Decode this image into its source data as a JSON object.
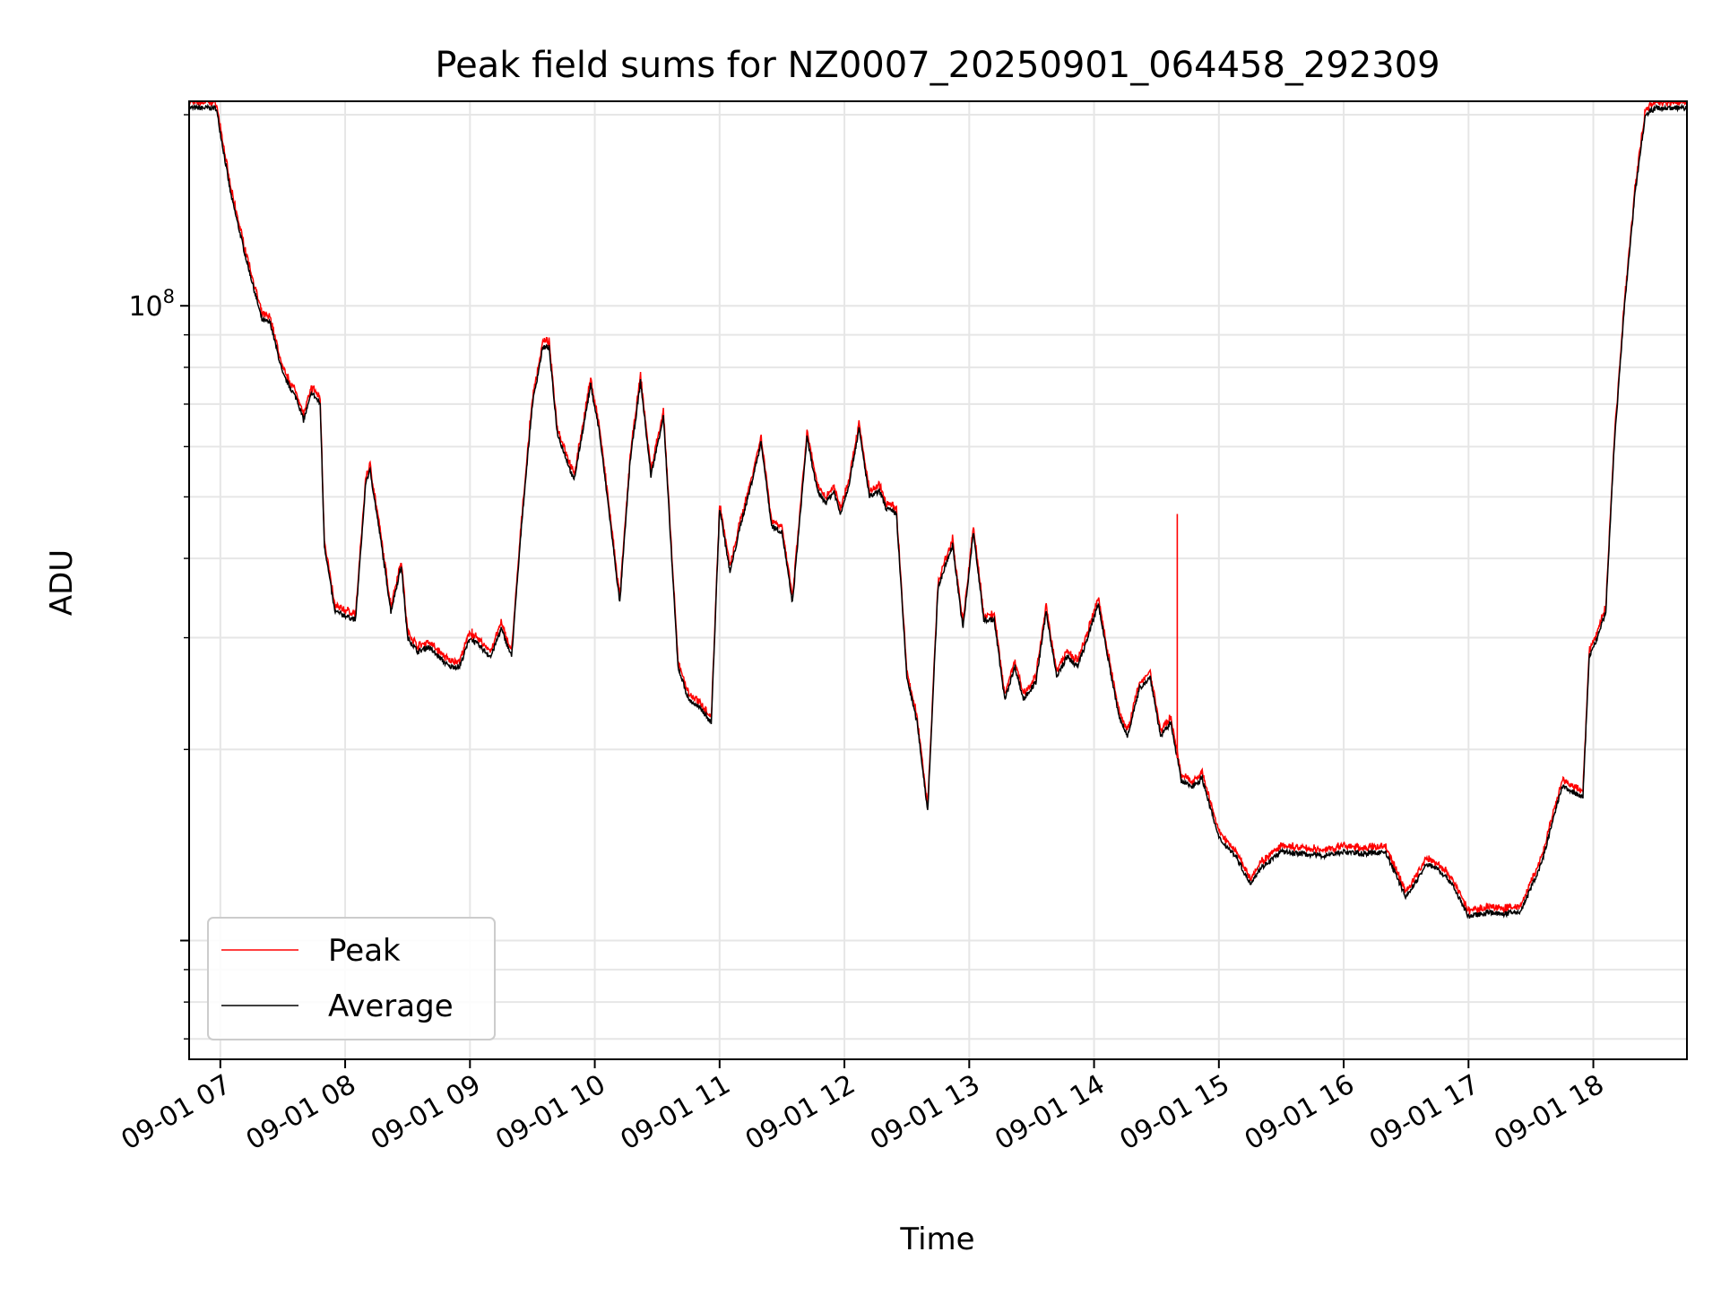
{
  "chart_data": {
    "type": "line",
    "title": "Peak field sums for NZ0007_20250901_064458_292309",
    "xlabel": "Time",
    "ylabel": "ADU",
    "y_scale": "log",
    "ylim": [
      6500000,
      210000000
    ],
    "xlim": [
      "09-01 06:45",
      "09-01 18:45"
    ],
    "x_ticks": [
      "09-01 07:00",
      "09-01 08:00",
      "09-01 09:00",
      "09-01 10:00",
      "09-01 11:00",
      "09-01 12:00",
      "09-01 13:00",
      "09-01 14:00",
      "09-01 15:00",
      "09-01 16:00",
      "09-01 17:00",
      "09-01 18:00"
    ],
    "x_tick_labels": [
      "09-01 07",
      "09-01 08",
      "09-01 09",
      "09-01 10",
      "09-01 11",
      "09-01 12",
      "09-01 13",
      "09-01 14",
      "09-01 15",
      "09-01 16",
      "09-01 17",
      "09-01 18"
    ],
    "y_tick_label_main": "10",
    "y_tick_label_exp": "8",
    "y_tick_value": 100000000,
    "grid": true,
    "legend_position": "lower-left",
    "series": [
      {
        "name": "Peak",
        "color": "#ff0000"
      },
      {
        "name": "Average",
        "color": "#000000"
      }
    ],
    "x": [
      "06:45",
      "06:58",
      "07:05",
      "07:12",
      "07:20",
      "07:24",
      "07:30",
      "07:37",
      "07:40",
      "07:44",
      "07:48",
      "07:50",
      "07:55",
      "08:05",
      "08:10",
      "08:12",
      "08:17",
      "08:22",
      "08:27",
      "08:30",
      "08:35",
      "08:40",
      "08:45",
      "08:50",
      "08:55",
      "09:00",
      "09:05",
      "09:10",
      "09:15",
      "09:20",
      "09:25",
      "09:30",
      "09:35",
      "09:38",
      "09:42",
      "09:50",
      "09:58",
      "10:02",
      "10:07",
      "10:12",
      "10:17",
      "10:22",
      "10:27",
      "10:33",
      "10:40",
      "10:45",
      "10:52",
      "10:56",
      "11:00",
      "11:05",
      "11:10",
      "11:15",
      "11:20",
      "11:25",
      "11:30",
      "11:35",
      "11:42",
      "11:47",
      "11:51",
      "11:55",
      "11:58",
      "12:02",
      "12:07",
      "12:12",
      "12:17",
      "12:20",
      "12:25",
      "12:30",
      "12:35",
      "12:40",
      "12:45",
      "12:52",
      "12:57",
      "13:02",
      "13:07",
      "13:12",
      "13:17",
      "13:22",
      "13:26",
      "13:32",
      "13:37",
      "13:42",
      "13:47",
      "13:52",
      "13:57",
      "14:02",
      "14:07",
      "14:12",
      "14:16",
      "14:22",
      "14:27",
      "14:32",
      "14:37",
      "14:42",
      "14:47",
      "14:52",
      "15:00",
      "15:08",
      "15:15",
      "15:20",
      "15:30",
      "15:40",
      "15:50",
      "16:00",
      "16:10",
      "16:20",
      "16:30",
      "16:40",
      "16:45",
      "16:52",
      "17:00",
      "17:05",
      "17:10",
      "17:15",
      "17:25",
      "17:35",
      "17:45",
      "17:55",
      "17:58",
      "18:02",
      "18:06",
      "18:10",
      "18:15",
      "18:20",
      "18:25",
      "18:30",
      "18:35",
      "18:45"
    ],
    "values_average": [
      205000000,
      205000000,
      150000000,
      120000000,
      95000000,
      94000000,
      78000000,
      71000000,
      66000000,
      73000000,
      70000000,
      42000000,
      33000000,
      32000000,
      53000000,
      55000000,
      43000000,
      33000000,
      39000000,
      30000000,
      28500000,
      29000000,
      28000000,
      27000000,
      27000000,
      30000000,
      29000000,
      28000000,
      31000000,
      28000000,
      46000000,
      70000000,
      86000000,
      86000000,
      63000000,
      53000000,
      75000000,
      64000000,
      47000000,
      34000000,
      57000000,
      76000000,
      54000000,
      67000000,
      27000000,
      24000000,
      23000000,
      22000000,
      48000000,
      38000000,
      45000000,
      52000000,
      61000000,
      45000000,
      44000000,
      34000000,
      62000000,
      51000000,
      49000000,
      51000000,
      47000000,
      52000000,
      64000000,
      50000000,
      51000000,
      48000000,
      47000000,
      26000000,
      22000000,
      16000000,
      36000000,
      42000000,
      31000000,
      44000000,
      32000000,
      32000000,
      24000000,
      27000000,
      24000000,
      25500000,
      33000000,
      26000000,
      28000000,
      27000000,
      30000000,
      34000000,
      27500000,
      22500000,
      21000000,
      25000000,
      26000000,
      21000000,
      22000000,
      17800000,
      17500000,
      18000000,
      14500000,
      13600000,
      12300000,
      13000000,
      13800000,
      13700000,
      13600000,
      13800000,
      13700000,
      13800000,
      11700000,
      13200000,
      13000000,
      12300000,
      10900000,
      11000000,
      11100000,
      11000000,
      11100000,
      13200000,
      17500000,
      16800000,
      28000000,
      30000000,
      33000000,
      60000000,
      100000000,
      150000000,
      200000000,
      205000000,
      205000000,
      205000000
    ],
    "values_peak_offset_note": "",
    "peak_spikes": [
      {
        "x": "09:01",
        "value": 31000000
      },
      {
        "x": "14:40",
        "value": 47000000
      }
    ]
  }
}
